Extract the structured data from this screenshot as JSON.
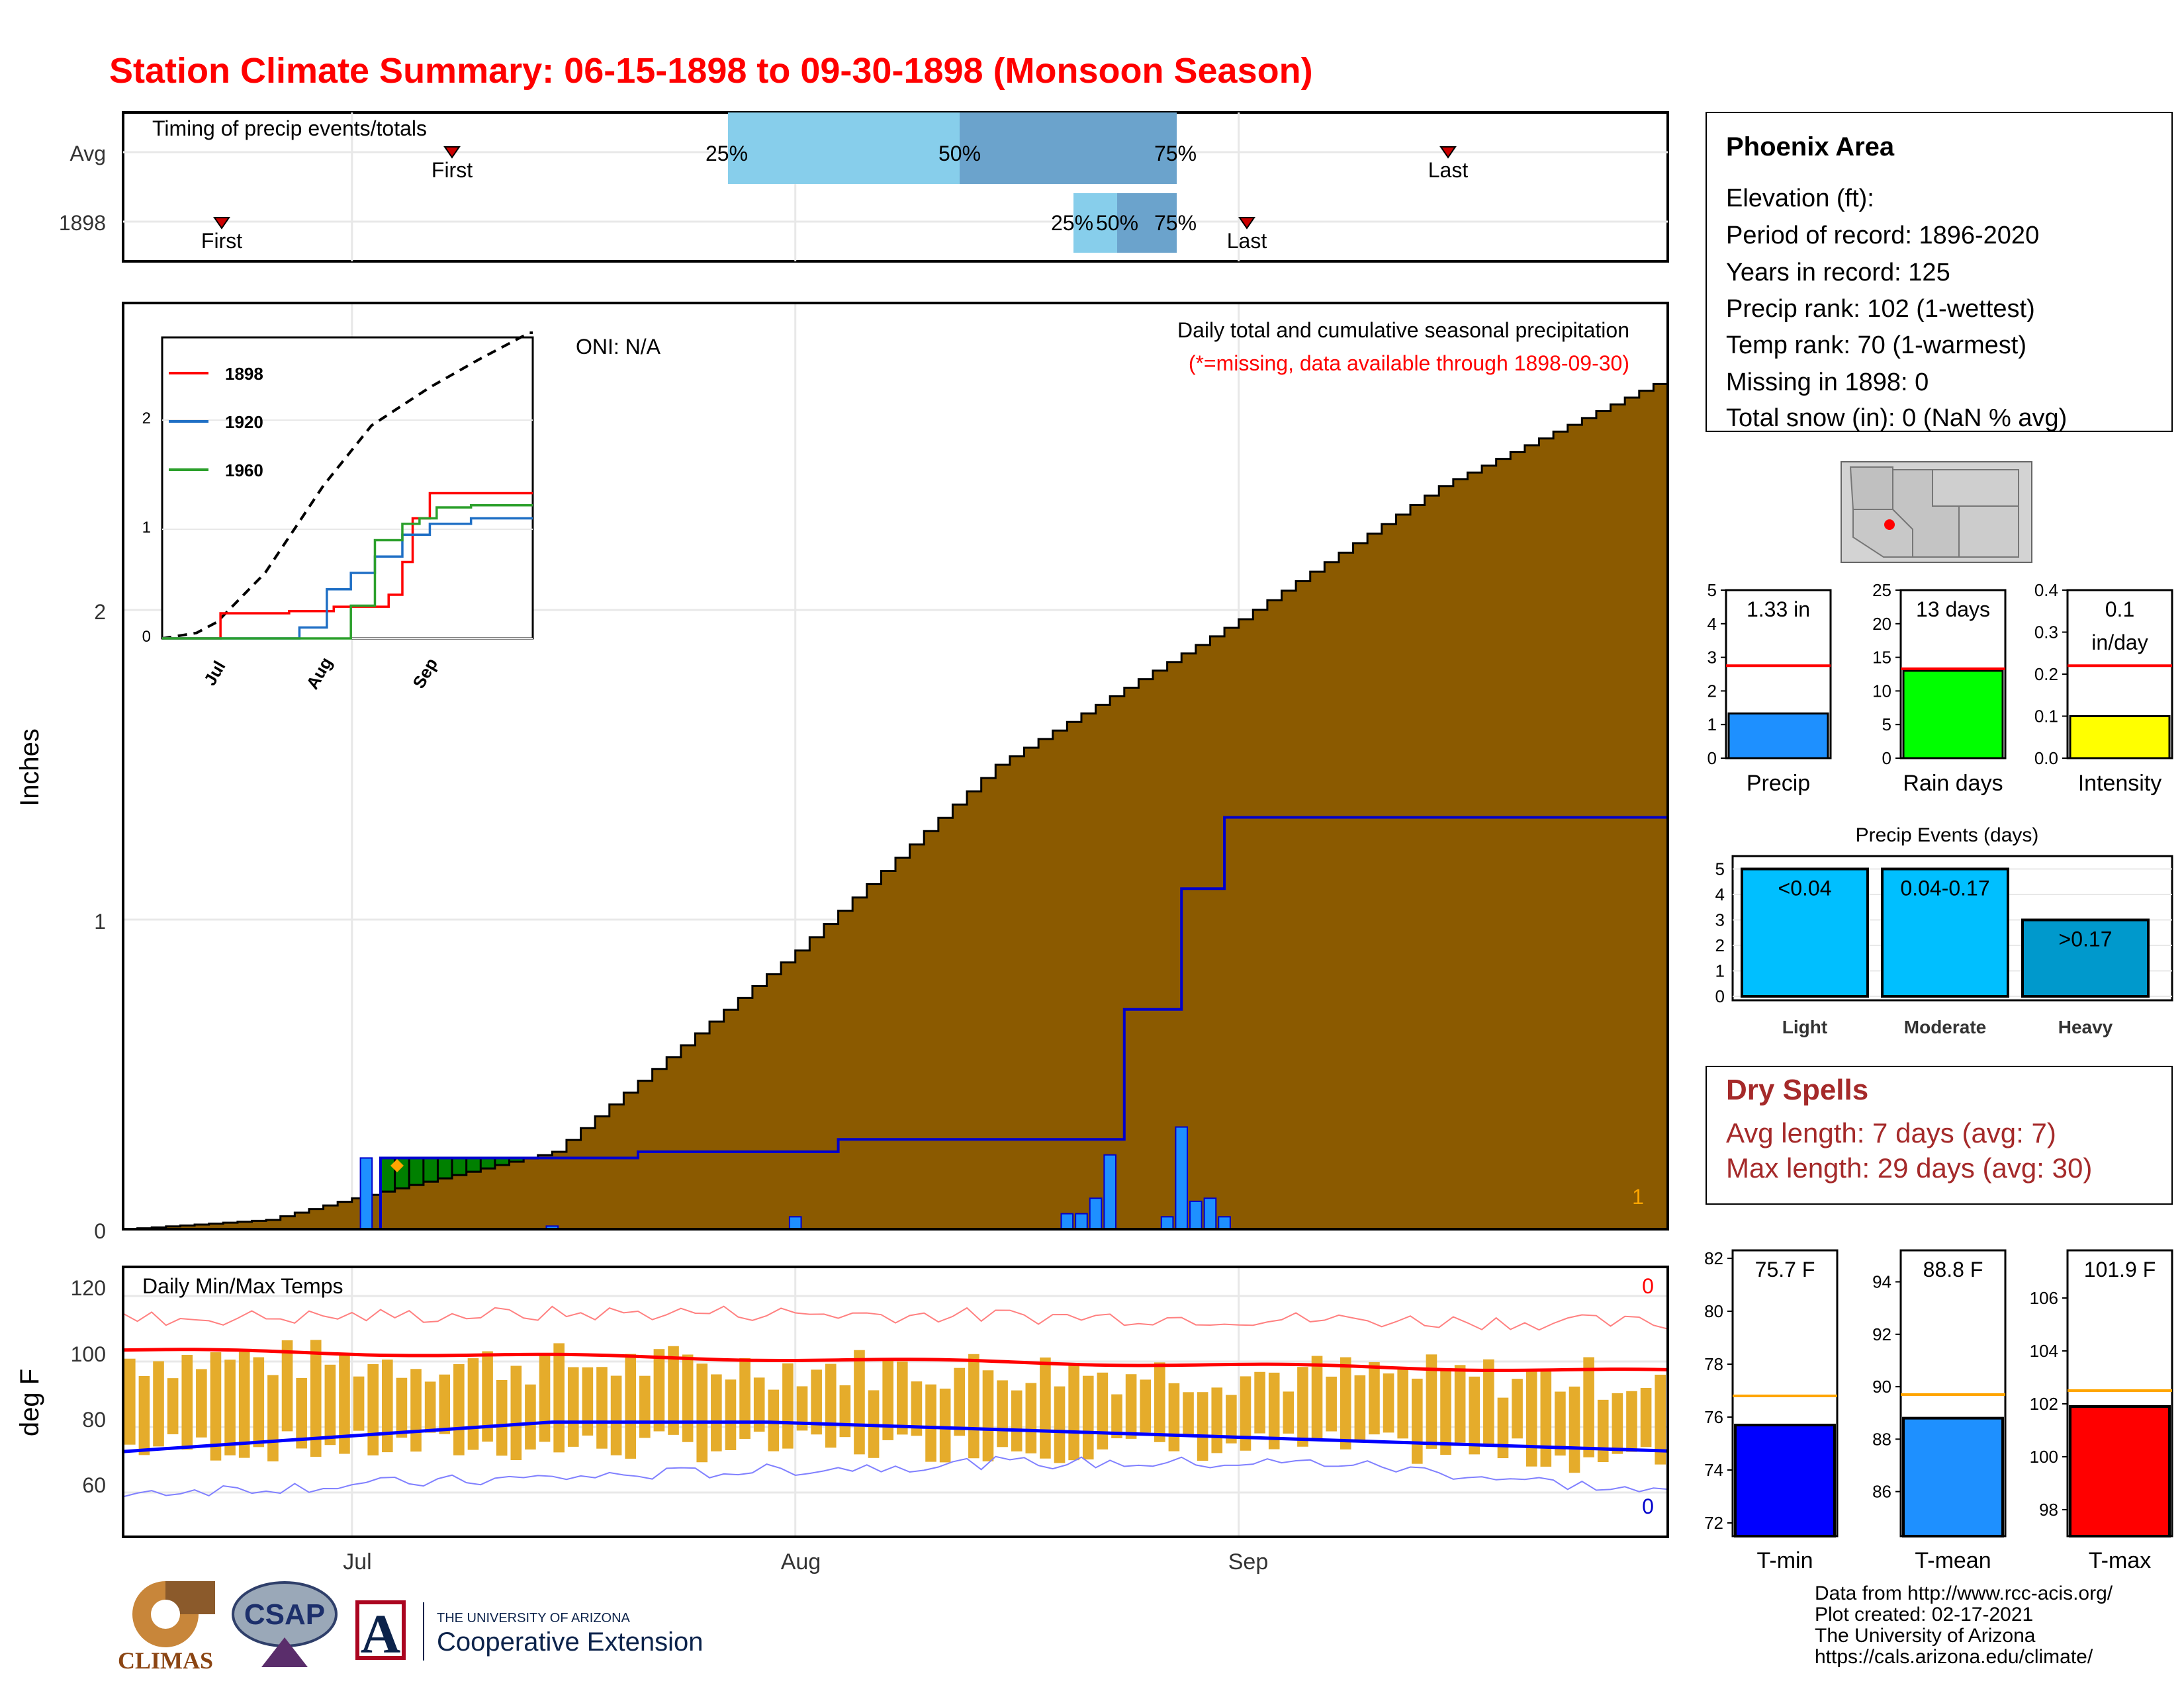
{
  "title": "Station Climate Summary: 06-15-1898 to 09-30-1898 (Monsoon Season)",
  "colors": {
    "title": "#ff0000",
    "cumulative_fill": "#8b5a00",
    "avg_fill": "#e0e0e0",
    "daily_bar": "#1e90ff",
    "green_fill": "#008000",
    "temp_bar": "#e5ac2b",
    "tmax_line": "#ff0000",
    "tmin_line": "#0000ff",
    "light": "#00bfff",
    "moderate": "#00bfff",
    "heavy": "#0099cc",
    "precip_bar": "#1e90ff",
    "raindays_bar": "#00ff00",
    "intensity_bar": "#ffff00",
    "tmin_bar": "#0000ff",
    "tmean_bar": "#1e90ff",
    "tmax_bar": "#ff0000"
  },
  "timing_panel": {
    "title": "Timing of precip events/totals",
    "rows": [
      "Avg",
      "1898"
    ],
    "first_label": "First",
    "last_label": "Last",
    "pct_labels": [
      "25%",
      "50%",
      "75%"
    ]
  },
  "precip_panel": {
    "ylabel": "Inches",
    "oni": "ONI: N/A",
    "caption": "Daily total and cumulative seasonal precipitation",
    "missing_note": "(*=missing, data available through 1898-09-30)",
    "corner_value": "1",
    "yticks": [
      "0",
      "1",
      "2"
    ]
  },
  "inset": {
    "legend": [
      "1898",
      "1920",
      "1960"
    ],
    "legend_colors": [
      "#ff0000",
      "#1f6fc5",
      "#2ca02c"
    ],
    "yticks": [
      "0",
      "1",
      "2"
    ],
    "xticks": [
      "Jul",
      "Aug",
      "Sep"
    ]
  },
  "temp_panel": {
    "ylabel": "deg F",
    "title": "Daily Min/Max Temps",
    "yticks": [
      "60",
      "80",
      "100",
      "120"
    ],
    "missing_max": "0",
    "missing_min": "0"
  },
  "xticks": [
    "Jul",
    "Aug",
    "Sep"
  ],
  "info_box": {
    "station": "Phoenix Area",
    "lines": [
      "Elevation (ft):",
      "Period of record: 1896-2020",
      "Years in record: 125",
      "Precip rank: 102 (1-wettest)",
      "Temp rank: 70 (1-warmest)",
      "Missing in 1898: 0",
      "Total snow (in): 0 (NaN % avg)"
    ]
  },
  "mini_bars": {
    "precip": {
      "label": "Precip",
      "value_text": "1.33 in",
      "value": 1.33,
      "avg": 2.75,
      "ymax": 5,
      "yticks": [
        "0",
        "1",
        "2",
        "3",
        "4",
        "5"
      ]
    },
    "raindays": {
      "label": "Rain days",
      "value_text": "13 days",
      "value": 13,
      "avg": 13.3,
      "ymax": 25,
      "yticks": [
        "0",
        "5",
        "10",
        "15",
        "20",
        "25"
      ]
    },
    "intensity": {
      "label": "Intensity",
      "value_text": "0.1",
      "value_text2": "in/day",
      "value": 0.1,
      "avg": 0.22,
      "ymax": 0.4,
      "yticks": [
        "0.0",
        "0.1",
        "0.2",
        "0.3",
        "0.4"
      ]
    }
  },
  "events": {
    "title": "Precip Events (days)",
    "categories": [
      "Light",
      "Moderate",
      "Heavy"
    ],
    "labels": [
      "<0.04",
      "0.04-0.17",
      ">0.17"
    ],
    "values": [
      5,
      5,
      3
    ],
    "yticks": [
      "0",
      "1",
      "2",
      "3",
      "4",
      "5"
    ]
  },
  "dry_spells": {
    "title": "Dry Spells",
    "avg": "Avg length: 7 days (avg: 7)",
    "max": "Max length: 29 days (avg: 30)"
  },
  "temp_bars": {
    "tmin": {
      "label": "T-min",
      "value_text": "75.7 F",
      "value": 75.7,
      "avg": 76.8,
      "min": 71.5,
      "max": 82.3,
      "yticks": [
        "72",
        "74",
        "76",
        "78",
        "80",
        "82"
      ]
    },
    "tmean": {
      "label": "T-mean",
      "value_text": "88.8 F",
      "value": 88.8,
      "avg": 89.7,
      "min": 84.3,
      "max": 95.2,
      "yticks": [
        "86",
        "88",
        "90",
        "92",
        "94"
      ]
    },
    "tmax": {
      "label": "T-max",
      "value_text": "101.9 F",
      "value": 101.9,
      "avg": 102.5,
      "min": 97.0,
      "max": 107.8,
      "yticks": [
        "98",
        "100",
        "102",
        "104",
        "106"
      ]
    }
  },
  "credits": [
    "Data from http://www.rcc-acis.org/",
    "Plot created: 02-17-2021",
    "The University of Arizona",
    "https://cals.arizona.edu/climate/"
  ],
  "logos": {
    "climas": "CLIMAS",
    "csap": "CSAP",
    "ua_line1": "THE UNIVERSITY OF ARIZONA",
    "ua_line2": "Cooperative Extension"
  },
  "chart_data": {
    "type": "area",
    "series": [
      {
        "name": "Cumulative precip (avg)",
        "x_dates": [
          "06-15",
          "06-25",
          "07-01",
          "07-15",
          "08-01",
          "08-15",
          "09-01",
          "09-15",
          "09-30"
        ],
        "values": [
          0.0,
          0.03,
          0.1,
          0.25,
          0.9,
          1.5,
          1.97,
          2.4,
          2.73
        ]
      },
      {
        "name": "Cumulative precip (1898)",
        "x_dates": [
          "06-15",
          "07-02",
          "07-03",
          "07-21",
          "08-04",
          "08-24",
          "08-28",
          "08-31",
          "09-30"
        ],
        "values": [
          0.0,
          0.0,
          0.23,
          0.25,
          0.29,
          0.71,
          1.1,
          1.33,
          1.33
        ]
      },
      {
        "name": "Daily precip 1898",
        "x_dates": [
          "07-02",
          "07-15",
          "08-01",
          "08-20",
          "08-21",
          "08-22",
          "08-23",
          "08-27",
          "08-28",
          "08-29",
          "08-30",
          "08-31"
        ],
        "values": [
          0.23,
          0.01,
          0.04,
          0.05,
          0.05,
          0.1,
          0.24,
          0.04,
          0.33,
          0.09,
          0.1,
          0.04
        ]
      }
    ],
    "ylim": [
      0,
      3.0
    ],
    "ylabel": "Inches"
  }
}
